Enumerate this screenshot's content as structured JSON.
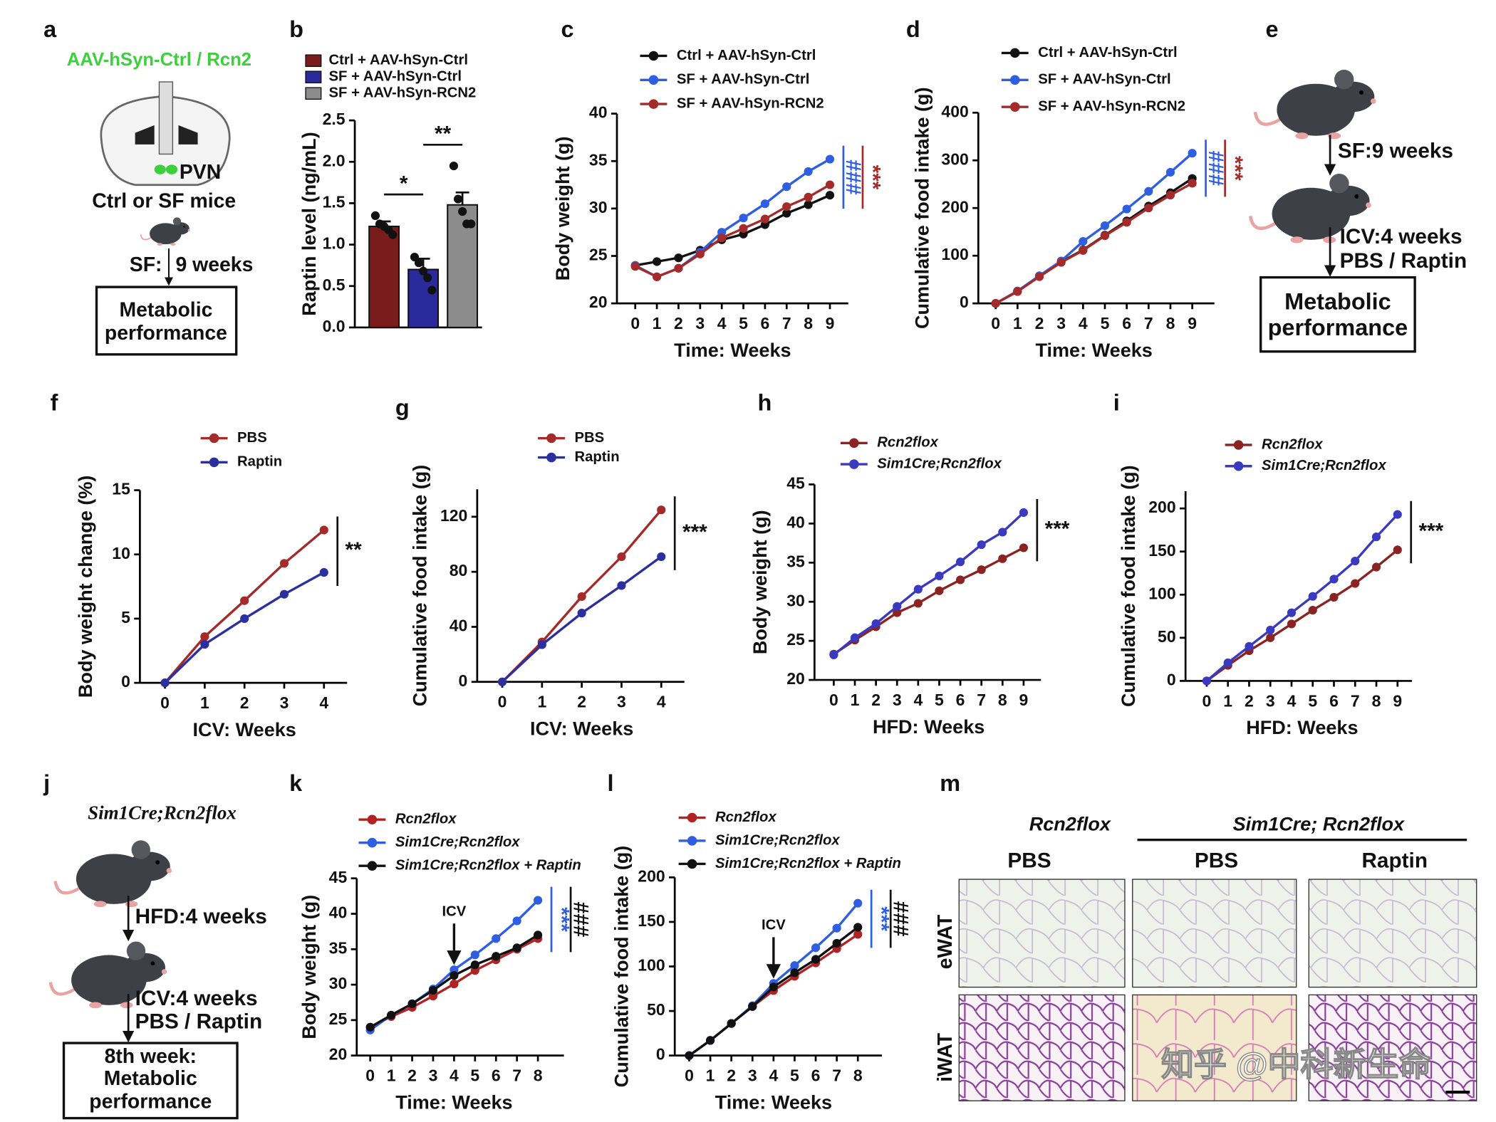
{
  "chart_data": [
    {
      "type": "bar",
      "panel": "b",
      "ylabel": "Raptin level (ng/mL)",
      "ylim": [
        0,
        2.5
      ],
      "yticks": [
        {
          "value": 0,
          "label": "0.0"
        },
        0.5,
        {
          "value": 1,
          "label": "1.0"
        },
        1.5,
        {
          "value": 2,
          "label": "2.0"
        },
        2.5
      ],
      "series": [
        {
          "name": "Ctrl + AAV-hSyn-Ctrl",
          "color": "#7a1c1c",
          "values": [
            1.22
          ],
          "errors": [
            0.06
          ],
          "points": [
            1.35,
            1.25,
            1.22,
            1.18,
            1.12
          ]
        },
        {
          "name": "SF + AAV-hSyn-Ctrl",
          "color": "#2a2a9c",
          "values": [
            0.7
          ],
          "errors": [
            0.13
          ],
          "points": [
            0.85,
            0.78,
            0.68,
            0.6,
            0.45
          ]
        },
        {
          "name": "SF + AAV-hSyn-RCN2",
          "color": "#8c8c8c",
          "values": [
            1.48
          ],
          "errors": [
            0.15
          ],
          "points": [
            1.95,
            1.55,
            1.4,
            1.25,
            1.25
          ]
        }
      ],
      "annotations": [
        "*",
        "**"
      ]
    },
    {
      "type": "line",
      "panel": "c",
      "xlabel": "Time: Weeks",
      "ylabel": "Body weight (g)",
      "x": [
        0,
        1,
        2,
        3,
        4,
        5,
        6,
        7,
        8,
        9
      ],
      "xlim": [
        0,
        9
      ],
      "xticks": [
        0,
        1,
        2,
        3,
        4,
        5,
        6,
        7,
        8,
        9
      ],
      "ylim": [
        20,
        40
      ],
      "yticks": [
        20,
        25,
        30,
        35,
        40
      ],
      "series": [
        {
          "name": "Ctrl + AAV-hSyn-Ctrl",
          "color": "#111111",
          "values": [
            24,
            24.4,
            24.8,
            25.6,
            26.7,
            27.3,
            28.3,
            29.5,
            30.4,
            31.4
          ]
        },
        {
          "name": "SF + AAV-hSyn-Ctrl",
          "color": "#2f5fe0",
          "values": [
            24,
            22.8,
            23.7,
            25.4,
            27.5,
            29.0,
            30.5,
            32.3,
            33.9,
            35.2
          ]
        },
        {
          "name": "SF + AAV-hSyn-RCN2",
          "color": "#a52a2a",
          "values": [
            23.9,
            22.8,
            23.7,
            25.2,
            26.9,
            27.9,
            28.9,
            30.2,
            31.2,
            32.5
          ]
        }
      ],
      "annotations": [
        {
          "text": "###",
          "color": "#2f5fe0"
        },
        {
          "text": "***",
          "color": "#a52a2a"
        }
      ]
    },
    {
      "type": "line",
      "panel": "d",
      "xlabel": "Time: Weeks",
      "ylabel": "Cumulative food intake (g)",
      "x": [
        0,
        1,
        2,
        3,
        4,
        5,
        6,
        7,
        8,
        9
      ],
      "xlim": [
        0,
        9
      ],
      "xticks": [
        0,
        1,
        2,
        3,
        4,
        5,
        6,
        7,
        8,
        9
      ],
      "ylim": [
        0,
        400
      ],
      "yticks": [
        0,
        100,
        200,
        300,
        400
      ],
      "series": [
        {
          "name": "Ctrl + AAV-hSyn-Ctrl",
          "color": "#111111",
          "values": [
            0,
            25,
            57,
            87,
            112,
            143,
            173,
            204,
            232,
            262
          ]
        },
        {
          "name": "SF + AAV-hSyn-Ctrl",
          "color": "#2f5fe0",
          "values": [
            0,
            26,
            58,
            89,
            130,
            163,
            198,
            235,
            275,
            315
          ]
        },
        {
          "name": "SF + AAV-hSyn-RCN2",
          "color": "#a52a2a",
          "values": [
            0,
            25,
            56,
            86,
            111,
            142,
            170,
            200,
            227,
            252
          ]
        }
      ],
      "annotations": [
        {
          "text": "###",
          "color": "#2f5fe0"
        },
        {
          "text": "***",
          "color": "#a52a2a"
        }
      ]
    },
    {
      "type": "line",
      "panel": "f",
      "xlabel": "ICV: Weeks",
      "ylabel": "Body weight change (%)",
      "x": [
        0,
        1,
        2,
        3,
        4
      ],
      "xlim": [
        0,
        4
      ],
      "xticks": [
        0,
        1,
        2,
        3,
        4
      ],
      "ylim": [
        0,
        15
      ],
      "yticks": [
        0,
        5,
        10,
        15
      ],
      "series": [
        {
          "name": "PBS",
          "color": "#a52a2a",
          "values": [
            0,
            3.6,
            6.4,
            9.3,
            11.9
          ]
        },
        {
          "name": "Raptin",
          "color": "#2b2fa0",
          "values": [
            0,
            3.0,
            5.0,
            6.9,
            8.6
          ]
        }
      ],
      "annotations": [
        {
          "text": "**",
          "color": "#111111"
        }
      ]
    },
    {
      "type": "line",
      "panel": "g",
      "xlabel": "ICV: Weeks",
      "ylabel": "Cumulative food intake (g)",
      "x": [
        0,
        1,
        2,
        3,
        4
      ],
      "xlim": [
        0,
        4
      ],
      "xticks": [
        0,
        1,
        2,
        3,
        4
      ],
      "ylim": [
        0,
        140
      ],
      "yticks": [
        0,
        40,
        80,
        120
      ],
      "series": [
        {
          "name": "PBS",
          "color": "#a52a2a",
          "values": [
            0,
            29,
            62,
            91,
            125
          ]
        },
        {
          "name": "Raptin",
          "color": "#2b2fa0",
          "values": [
            0,
            27,
            50,
            70,
            91
          ]
        }
      ],
      "annotations": [
        {
          "text": "***",
          "color": "#111111"
        }
      ]
    },
    {
      "type": "line",
      "panel": "h",
      "xlabel": "HFD: Weeks",
      "ylabel": "Body weight (g)",
      "legend_font_style": "italic",
      "x": [
        0,
        1,
        2,
        3,
        4,
        5,
        6,
        7,
        8,
        9
      ],
      "xlim": [
        0,
        9
      ],
      "xticks": [
        0,
        1,
        2,
        3,
        4,
        5,
        6,
        7,
        8,
        9
      ],
      "ylim": [
        20,
        45
      ],
      "yticks": [
        20,
        25,
        30,
        35,
        40,
        45
      ],
      "series": [
        {
          "name": "Rcn2flox",
          "color": "#8b2323",
          "values": [
            23.3,
            25.1,
            26.8,
            28.6,
            29.8,
            31.4,
            32.8,
            34.1,
            35.5,
            36.9
          ]
        },
        {
          "name": "Sim1Cre;Rcn2flox",
          "color": "#3a3ac0",
          "values": [
            23.2,
            25.4,
            27.2,
            29.4,
            31.6,
            33.3,
            35.1,
            37.3,
            38.9,
            41.4
          ]
        }
      ],
      "annotations": [
        {
          "text": "***",
          "color": "#111111"
        }
      ]
    },
    {
      "type": "line",
      "panel": "i",
      "xlabel": "HFD: Weeks",
      "ylabel": "Cumulative food intake (g)",
      "legend_font_style": "italic",
      "x": [
        0,
        1,
        2,
        3,
        4,
        5,
        6,
        7,
        8,
        9
      ],
      "xlim": [
        0,
        9
      ],
      "xticks": [
        0,
        1,
        2,
        3,
        4,
        5,
        6,
        7,
        8,
        9
      ],
      "ylim": [
        0,
        220
      ],
      "yticks": [
        0,
        50,
        100,
        150,
        200
      ],
      "series": [
        {
          "name": "Rcn2flox",
          "color": "#8b2323",
          "values": [
            0,
            18,
            35,
            50,
            66,
            82,
            97,
            113,
            132,
            152
          ]
        },
        {
          "name": "Sim1Cre;Rcn2flox",
          "color": "#3a3ac0",
          "values": [
            0,
            21,
            40,
            59,
            79,
            98,
            118,
            139,
            167,
            193
          ]
        }
      ],
      "annotations": [
        {
          "text": "***",
          "color": "#111111"
        }
      ]
    },
    {
      "type": "line",
      "panel": "k",
      "xlabel": "Time: Weeks",
      "ylabel": "Body weight (g)",
      "legend_font_style": "italic",
      "x": [
        0,
        1,
        2,
        3,
        4,
        5,
        6,
        7,
        8
      ],
      "xlim": [
        0,
        8
      ],
      "xticks": [
        0,
        1,
        2,
        3,
        4,
        5,
        6,
        7,
        8
      ],
      "ylim": [
        20,
        45
      ],
      "yticks": [
        20,
        25,
        30,
        35,
        40,
        45
      ],
      "series": [
        {
          "name": "Rcn2flox",
          "color": "#b22222",
          "values": [
            24,
            25.5,
            26.8,
            28.4,
            30.1,
            32,
            33.5,
            35,
            36.5
          ]
        },
        {
          "name": "Sim1Cre;Rcn2flox",
          "color": "#2f5fe0",
          "values": [
            23.6,
            25.7,
            27.3,
            29.4,
            32.1,
            34.2,
            36.5,
            39,
            41.9
          ]
        },
        {
          "name": "Sim1Cre;Rcn2flox + Raptin",
          "color": "#111111",
          "values": [
            24,
            25.7,
            27.3,
            29.2,
            31.3,
            32.8,
            34,
            35.2,
            37
          ]
        }
      ],
      "arrow": {
        "text": "ICV",
        "x": 4
      },
      "annotations": [
        {
          "text": "***",
          "color": "#2f5fe0"
        },
        {
          "text": "###",
          "color": "#111111"
        }
      ]
    },
    {
      "type": "line",
      "panel": "l",
      "xlabel": "Time: Weeks",
      "ylabel": "Cumulative food intake (g)",
      "legend_font_style": "italic",
      "x": [
        0,
        1,
        2,
        3,
        4,
        5,
        6,
        7,
        8
      ],
      "xlim": [
        0,
        8
      ],
      "xticks": [
        0,
        1,
        2,
        3,
        4,
        5,
        6,
        7,
        8
      ],
      "ylim": [
        0,
        200
      ],
      "yticks": [
        0,
        50,
        100,
        150,
        200
      ],
      "series": [
        {
          "name": "Rcn2flox",
          "color": "#b22222",
          "values": [
            0,
            17,
            36,
            55,
            73,
            89,
            104,
            120,
            136
          ]
        },
        {
          "name": "Sim1Cre;Rcn2flox",
          "color": "#2f5fe0",
          "values": [
            0,
            17,
            36,
            56,
            81,
            101,
            121,
            143,
            171
          ]
        },
        {
          "name": "Sim1Cre;Rcn2flox + Raptin",
          "color": "#111111",
          "values": [
            0,
            17,
            36,
            55,
            77,
            93,
            108,
            126,
            144
          ]
        }
      ],
      "arrow": {
        "text": "ICV",
        "x": 4
      },
      "annotations": [
        {
          "text": "***",
          "color": "#2f5fe0"
        },
        {
          "text": "###",
          "color": "#111111"
        }
      ]
    }
  ],
  "diagrams": {
    "a": {
      "panel": "a",
      "virus": "AAV-hSyn-Ctrl / Rcn2",
      "region": "PVN",
      "mice": "Ctrl or SF mice",
      "step_label": "SF:",
      "step_value": "9 weeks",
      "outcome": [
        "Metabolic",
        "performance"
      ]
    },
    "e": {
      "panel": "e",
      "steps": [
        "SF:9 weeks",
        "ICV:4 weeks",
        "PBS / Raptin"
      ],
      "outcome": [
        "Metabolic",
        "performance"
      ]
    },
    "j": {
      "panel": "j",
      "strain": "Sim1Cre;Rcn2flox",
      "steps": [
        "HFD:4 weeks",
        "ICV:4 weeks",
        "PBS / Raptin"
      ],
      "outcome": [
        "8th week:",
        "Metabolic",
        "performance"
      ]
    },
    "m": {
      "panel": "m",
      "group_headers": [
        "Rcn2flox",
        "Sim1Cre; Rcn2flox"
      ],
      "columns": [
        "PBS",
        "PBS",
        "Raptin"
      ],
      "rows": [
        "eWAT",
        "iWAT"
      ]
    }
  },
  "watermark": "知乎 @中科新生命"
}
